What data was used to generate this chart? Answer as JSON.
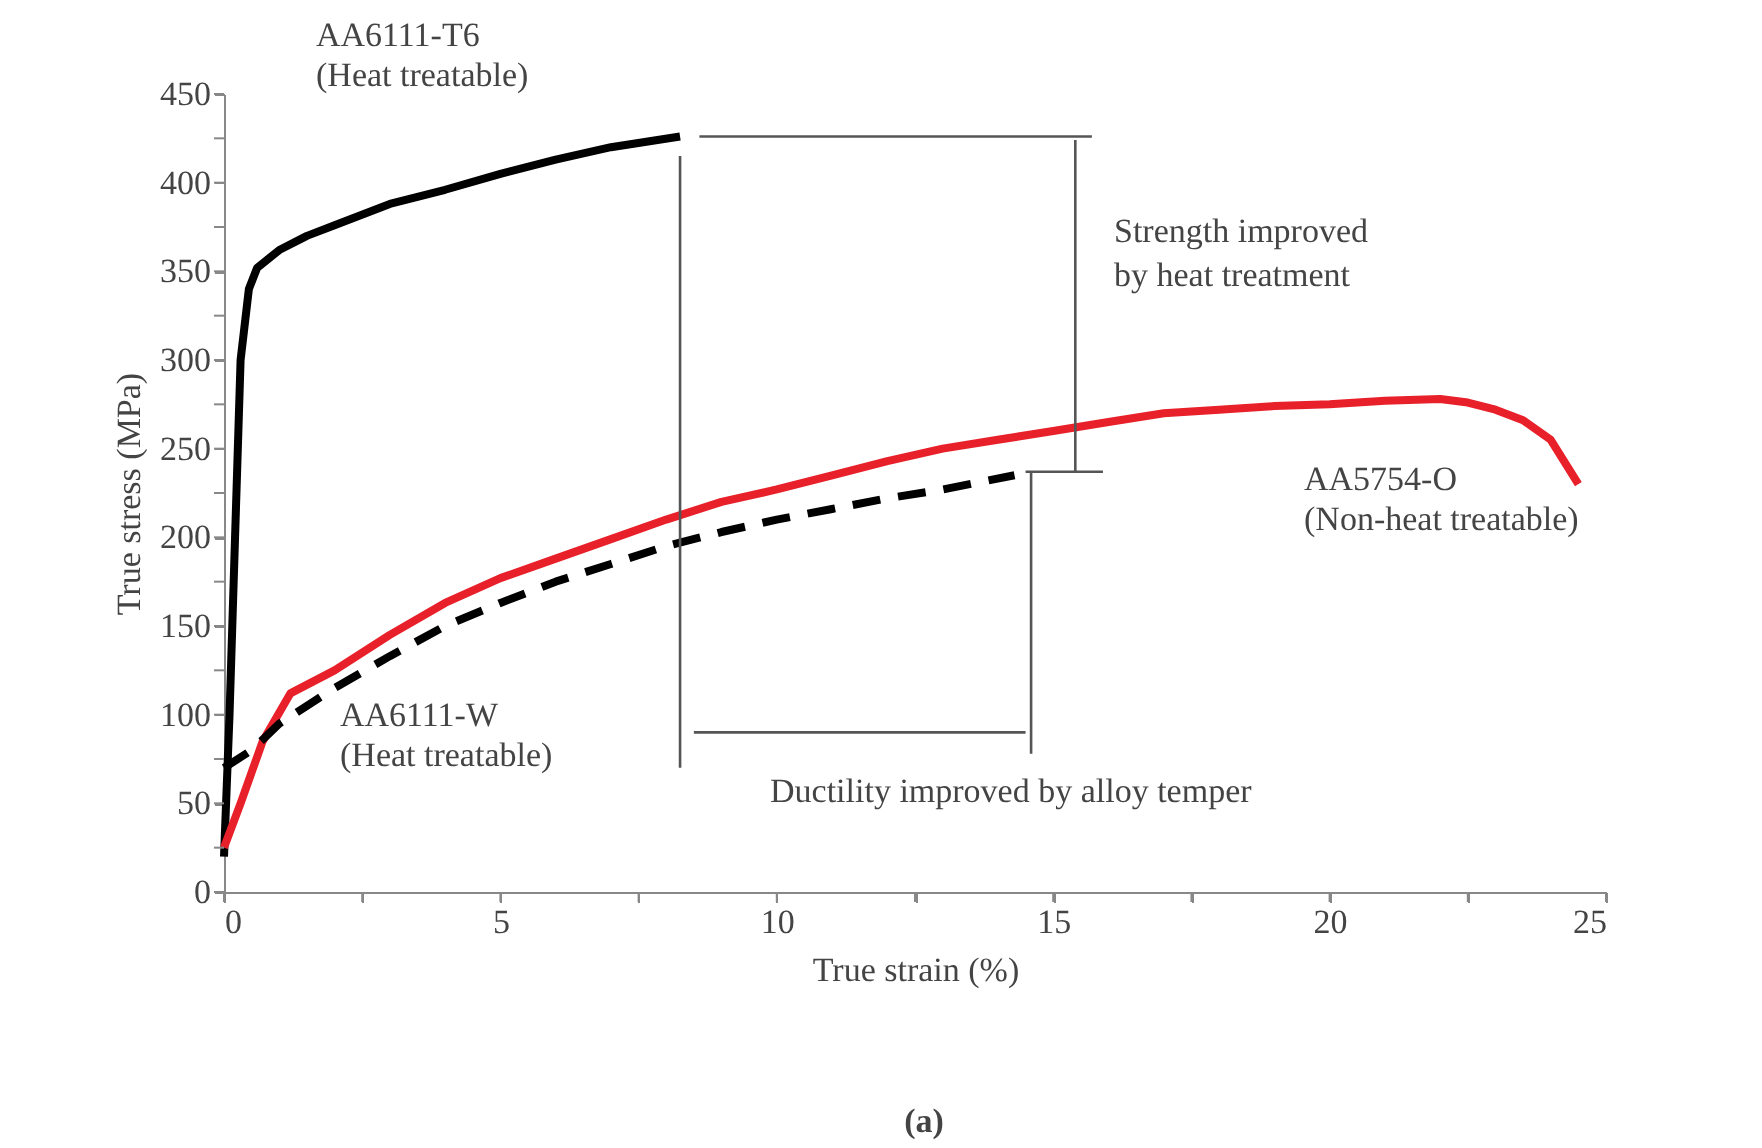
{
  "chart_data": {
    "type": "line",
    "xlabel": "True strain (%)",
    "ylabel": "True stress (MPa)",
    "xlim": [
      0,
      25
    ],
    "ylim": [
      0,
      450
    ],
    "xticks": [
      0,
      {
        "value": 2.5,
        "label": null
      },
      5,
      {
        "value": 7.5,
        "label": null
      },
      10,
      {
        "value": 12.5,
        "label": null
      },
      15,
      {
        "value": 17.5,
        "label": null
      },
      20,
      {
        "value": 22.5,
        "label": null
      },
      25
    ],
    "yticks": [
      0,
      {
        "value": 25,
        "label": null
      },
      50,
      {
        "value": 75,
        "label": null
      },
      100,
      {
        "value": 125,
        "label": null
      },
      150,
      {
        "value": 175,
        "label": null
      },
      200,
      {
        "value": 225,
        "label": null
      },
      250,
      {
        "value": 275,
        "label": null
      },
      300,
      {
        "value": 325,
        "label": null
      },
      350,
      {
        "value": 375,
        "label": null
      },
      400,
      {
        "value": 425,
        "label": null
      },
      450
    ],
    "grid": false,
    "series": [
      {
        "name": "AA6111-T6\n(Heat treatable)",
        "color": "#000000",
        "line_style": "solid",
        "x": [
          0,
          0.1,
          0.2,
          0.3,
          0.45,
          0.6,
          1,
          1.5,
          2,
          3,
          4,
          5,
          6,
          7,
          8.25
        ],
        "values": [
          20,
          100,
          200,
          300,
          340,
          352,
          362,
          370,
          376,
          388,
          396,
          405,
          413,
          420,
          426
        ]
      },
      {
        "name": "AA5754-O\n(Non-heat treatable)",
        "color": "#e8202a",
        "line_style": "solid",
        "x": [
          0,
          0.3,
          0.7,
          1.2,
          2,
          3,
          4,
          5,
          6,
          7,
          8,
          9,
          10,
          11,
          12,
          13,
          14,
          15,
          16,
          17,
          18,
          19,
          20,
          21,
          22,
          22.5,
          23,
          23.5,
          24,
          24.5
        ],
        "values": [
          25,
          50,
          85,
          112,
          125,
          145,
          163,
          177,
          188,
          199,
          210,
          220,
          227,
          235,
          243,
          250,
          255,
          260,
          265,
          270,
          272,
          274,
          275,
          277,
          278,
          276,
          272,
          266,
          255,
          230
        ]
      },
      {
        "name": "AA6111-W\n(Heat treatable)",
        "color": "#000000",
        "line_style": "dashed",
        "x": [
          0,
          0.5,
          1,
          1.5,
          2,
          3,
          4,
          5,
          6,
          7,
          8,
          9,
          10,
          11,
          12,
          13,
          14.3
        ],
        "values": [
          70,
          80,
          95,
          105,
          115,
          133,
          150,
          163,
          175,
          185,
          195,
          203,
          210,
          216,
          222,
          227,
          235
        ]
      },
      {
        "color": "#555555",
        "line_style": "solid",
        "x": [
          8.25,
          8.25
        ],
        "values": [
          70,
          415
        ]
      },
      {
        "color": "#555555",
        "line_style": "solid",
        "x": [
          8.6,
          15.7
        ],
        "values": [
          426,
          426
        ]
      },
      {
        "color": "#555555",
        "line_style": "solid",
        "x": [
          15.4,
          15.4
        ],
        "values": [
          237,
          424
        ]
      },
      {
        "color": "#555555",
        "line_style": "solid",
        "x": [
          14.5,
          15.9
        ],
        "values": [
          237,
          237
        ]
      },
      {
        "color": "#555555",
        "line_style": "solid",
        "x": [
          14.6,
          14.6
        ],
        "values": [
          237,
          78
        ]
      },
      {
        "color": "#555555",
        "line_style": "solid",
        "x": [
          8.5,
          14.5
        ],
        "values": [
          90,
          90
        ]
      }
    ],
    "annotations": [
      "Strength improved\nby heat treatment",
      "Ductility improved by alloy temper",
      "(a)"
    ]
  }
}
